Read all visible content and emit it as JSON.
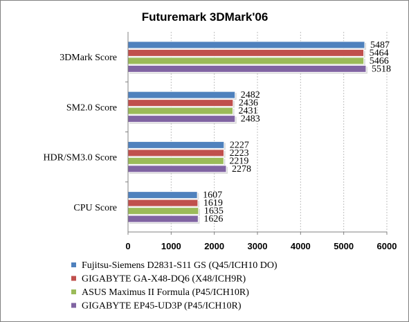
{
  "chart_data": {
    "type": "bar",
    "orientation": "horizontal",
    "title": "Futuremark 3DMark'06",
    "categories": [
      "3DMark Score",
      "SM2.0 Score",
      "HDR/SM3.0 Score",
      "CPU Score"
    ],
    "series": [
      {
        "name": "Fujitsu-Siemens D2831-S11 GS (Q45/ICH10 DO)",
        "color": "#4f81bd",
        "values": [
          5487,
          2482,
          2227,
          1607
        ]
      },
      {
        "name": "GIGABYTE GA-X48-DQ6 (X48/ICH9R)",
        "color": "#c0504d",
        "values": [
          5464,
          2436,
          2223,
          1619
        ]
      },
      {
        "name": "ASUS Maximus II Formula (P45/ICH10R)",
        "color": "#9bbb59",
        "values": [
          5466,
          2431,
          2219,
          1635
        ]
      },
      {
        "name": "GIGABYTE EP45-UD3P (P45/ICH10R)",
        "color": "#8064a2",
        "values": [
          5518,
          2483,
          2278,
          1626
        ]
      }
    ],
    "xlim": [
      0,
      6000
    ],
    "x_ticks": [
      0,
      1000,
      2000,
      3000,
      4000,
      5000,
      6000
    ],
    "grid": true,
    "legend_position": "bottom"
  }
}
